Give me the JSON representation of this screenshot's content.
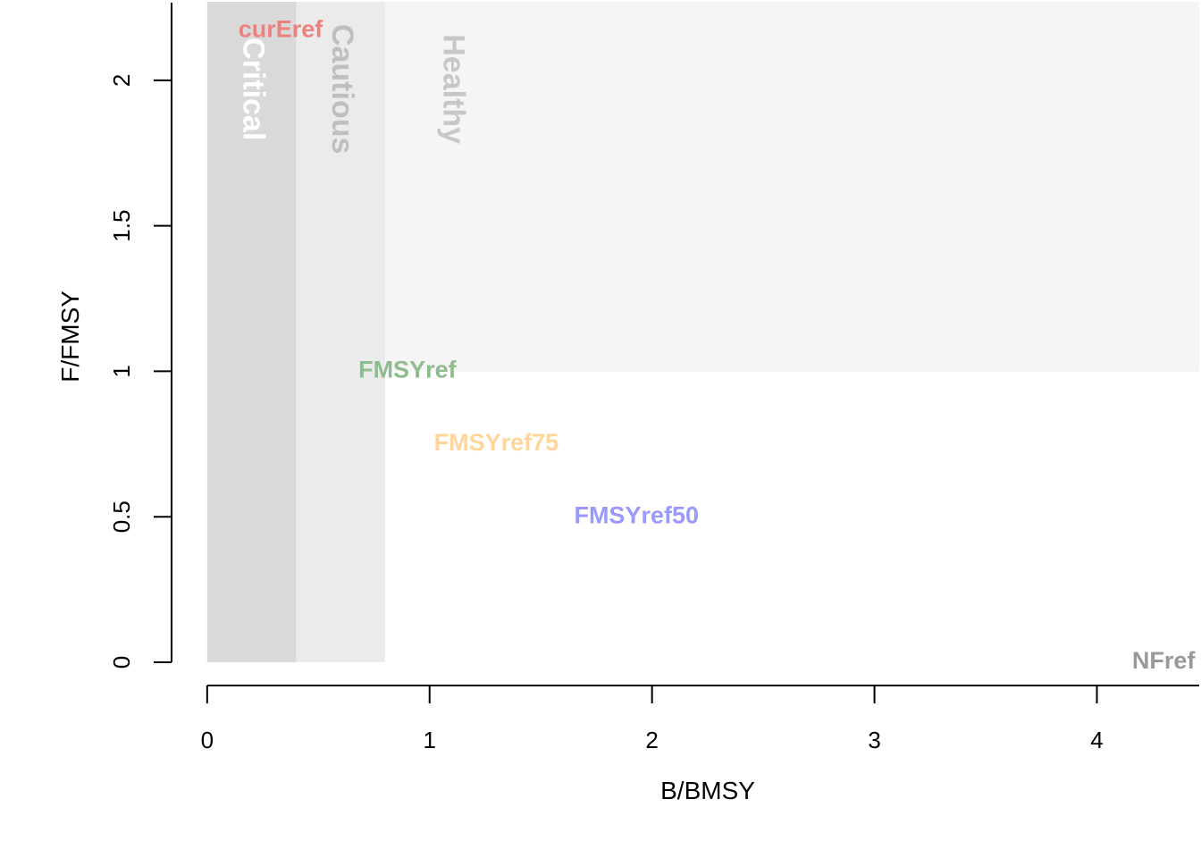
{
  "chart_data": {
    "type": "scatter",
    "title": "",
    "xlabel": "B/BMSY",
    "ylabel": "F/FMSY",
    "xlim": [
      -0.16,
      4.46
    ],
    "ylim": [
      -0.04,
      2.27
    ],
    "x_ticks": [
      0,
      1,
      2,
      3,
      4
    ],
    "y_ticks": [
      0,
      0.5,
      1,
      1.5,
      2
    ],
    "x_tick_labels": [
      "0",
      "1",
      "2",
      "3",
      "4"
    ],
    "y_tick_labels": [
      "0",
      "0.5",
      "1",
      "1.5",
      "2"
    ],
    "grid": false,
    "zones": [
      {
        "name": "Critical",
        "x0": 0,
        "x1": 0.4,
        "y0": 0,
        "y1": 2.27,
        "fill": "#d9d9d9",
        "label_color": "#ffffff",
        "label_x": 0.2,
        "label_y": 1.97
      },
      {
        "name": "Cautious",
        "x0": 0.4,
        "x1": 0.8,
        "y0": 0,
        "y1": 2.27,
        "fill": "#ebebeb",
        "label_color": "#bfbfbf",
        "label_x": 0.6,
        "label_y": 1.97
      },
      {
        "name": "Healthy",
        "x0": 0.8,
        "x1": 4.46,
        "y0": 1,
        "y1": 2.27,
        "fill": "#f5f5f5",
        "label_color": "#c7c7c7",
        "label_x": 1.1,
        "label_y": 1.97
      }
    ],
    "reference_points": [
      {
        "name": "curEref",
        "x": 0.33,
        "y": 2.17,
        "color": "#f08080"
      },
      {
        "name": "FMSYref",
        "x": 0.9,
        "y": 1.0,
        "color": "#8fbc8f"
      },
      {
        "name": "FMSYref75",
        "x": 1.3,
        "y": 0.75,
        "color": "#ffd59a"
      },
      {
        "name": "FMSYref50",
        "x": 1.93,
        "y": 0.5,
        "color": "#9999ff"
      },
      {
        "name": "NFref",
        "x": 4.3,
        "y": 0,
        "color": "#999999"
      }
    ]
  }
}
